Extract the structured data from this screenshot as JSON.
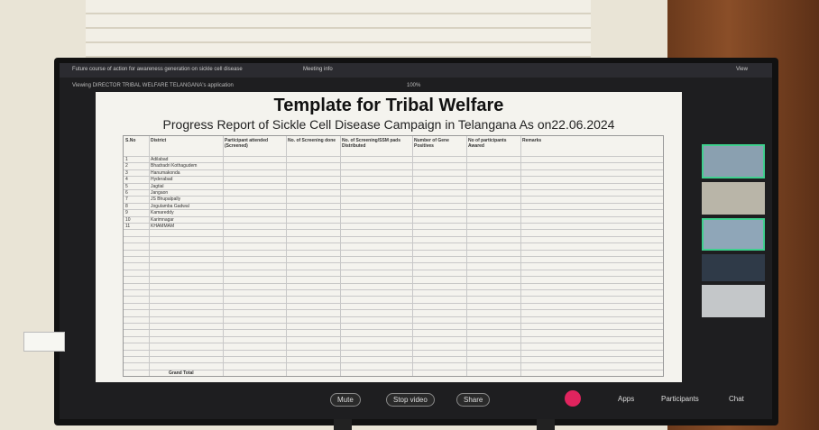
{
  "top_bar": {
    "meeting_title": "Future course of action for awareness generation on sickle cell disease",
    "meeting_info": "Meeting info",
    "viewing": "Viewing DIRECTOR TRIBAL WELFARE TELANGANA's application",
    "zoom": "100%",
    "view": "View"
  },
  "document": {
    "title": "Template for Tribal Welfare",
    "subtitle": "Progress Report of Sickle Cell Disease Campaign in Telangana As on22.06.2024",
    "table": {
      "headers": [
        "S.No",
        "District",
        "Participant attended (Screened)",
        "No. of Screening done",
        "No. of Screening/SSM pads Distributed",
        "Number of Gene Positives",
        "No of participants Awared",
        "Remarks"
      ],
      "rows": [
        [
          "1",
          "Adilabad"
        ],
        [
          "2",
          "Bhadradri Kothagudem"
        ],
        [
          "3",
          "Hanumakonda"
        ],
        [
          "4",
          "Hyderabad"
        ],
        [
          "5",
          "Jagtial"
        ],
        [
          "6",
          "Jangaon"
        ],
        [
          "7",
          "JS Bhupalpally"
        ],
        [
          "8",
          "Jogulamba Gadwal"
        ],
        [
          "9",
          "Kamareddy"
        ],
        [
          "10",
          "Karimnagar"
        ],
        [
          "11",
          "KHAMMAM"
        ]
      ],
      "footer": "Grand Total"
    }
  },
  "toolbar": {
    "mute": "Mute",
    "video": "Stop video",
    "share": "Share",
    "apps": "Apps",
    "participants": "Participants",
    "chat": "Chat"
  }
}
